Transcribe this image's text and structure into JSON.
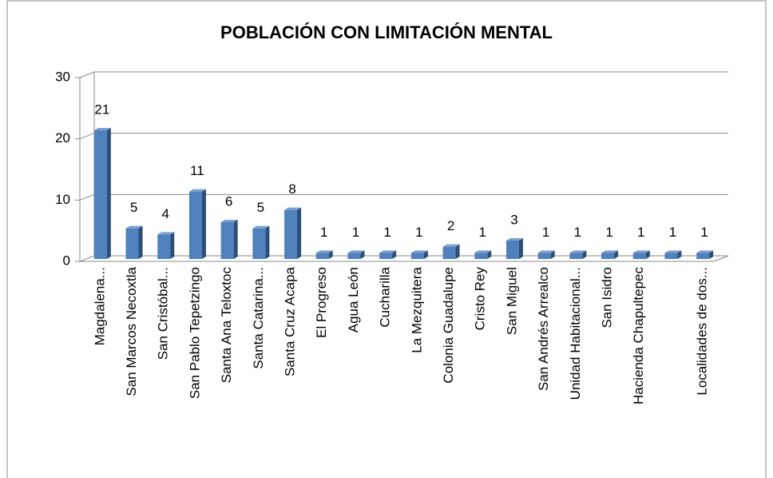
{
  "chart_data": {
    "type": "bar",
    "title": "POBLACIÓN CON LIMITACIÓN MENTAL",
    "categories": [
      "Magdalena...",
      "San Marcos Necoxtla",
      "San Cristóbal...",
      "San Pablo Tepetzingo",
      "Santa Ana Teloxtoc",
      "Santa Catarina...",
      "Santa Cruz Acapa",
      "El Progreso",
      "Agua León",
      "Cucharilla",
      "La Mezquitera",
      "Colonia Guadalupe",
      "Cristo Rey",
      "San Miguel",
      "San Andrés Arrealco",
      "Unidad Habitacional...",
      "San Isidro",
      "Hacienda Chapultepec",
      null,
      "Localidades de dos..."
    ],
    "values": [
      21,
      5,
      4,
      11,
      6,
      5,
      8,
      1,
      1,
      1,
      1,
      2,
      1,
      3,
      1,
      1,
      1,
      1,
      1,
      1
    ],
    "color": "#4f81bd",
    "ylim": [
      0,
      30
    ],
    "yticks": [
      0,
      10,
      20,
      30
    ],
    "grid": true
  }
}
